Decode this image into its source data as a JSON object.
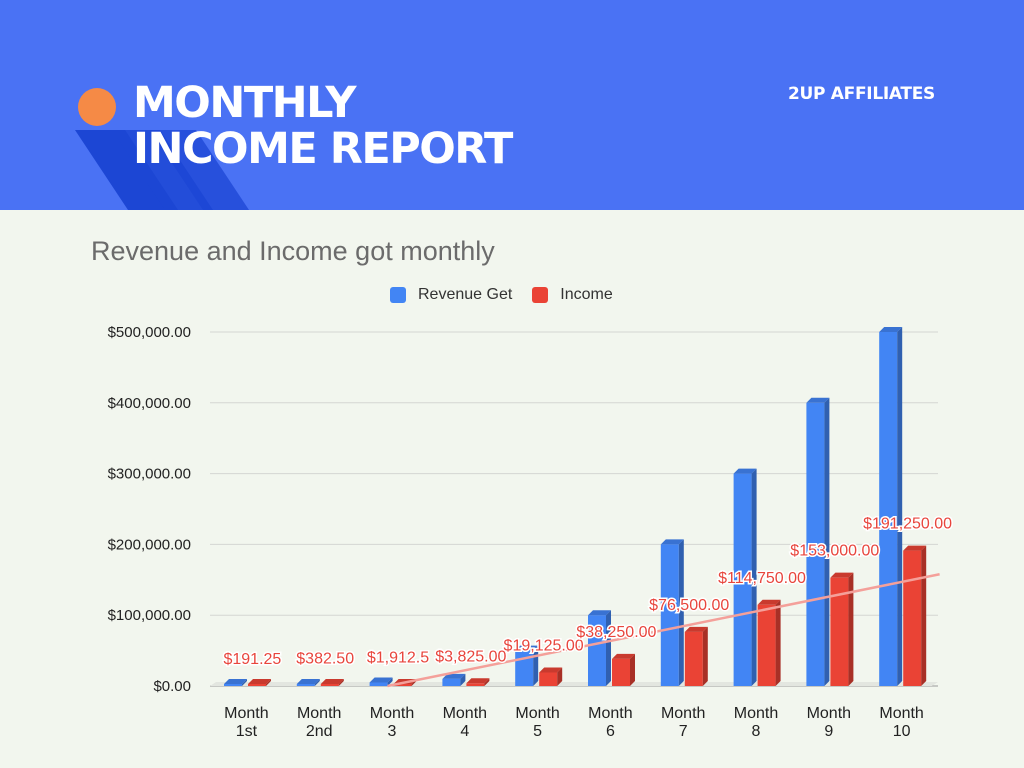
{
  "header": {
    "title_line1": "MONTHLY",
    "title_line2": "INCOME REPORT",
    "brand": "2UP AFFILIATES"
  },
  "colors": {
    "header_bg": "#4a72f4",
    "accent_dot": "#f58a46",
    "stripe": "#1c46d4",
    "revenue": "#4285f4",
    "income": "#ea4335",
    "trendline": "#f4a09a"
  },
  "chart_data": {
    "type": "bar",
    "title": "Revenue and Income got monthly",
    "categories": [
      [
        "Month",
        "1st"
      ],
      [
        "Month",
        "2nd"
      ],
      [
        "Month",
        "3"
      ],
      [
        "Month",
        "4"
      ],
      [
        "Month",
        "5"
      ],
      [
        "Month",
        "6"
      ],
      [
        "Month",
        "7"
      ],
      [
        "Month",
        "8"
      ],
      [
        "Month",
        "9"
      ],
      [
        "Month",
        "10"
      ]
    ],
    "series": [
      {
        "name": "Revenue Get",
        "values": [
          500,
          1000,
          5000,
          10000,
          50000,
          100000,
          200000,
          300000,
          400000,
          500000
        ]
      },
      {
        "name": "Income",
        "values": [
          191.25,
          382.5,
          1912.5,
          3825,
          19125,
          38250,
          76500,
          114750,
          153000,
          191250
        ],
        "data_labels": [
          "$191.25",
          "$382.50",
          "$1,912.5",
          "$3,825.00",
          "$19,125.00",
          "$38,250.00",
          "$76,500.00",
          "$114,750.00",
          "$153,000.00",
          "$191,250.00"
        ]
      }
    ],
    "yticks": [
      "$0.00",
      "$100,000.00",
      "$200,000.00",
      "$300,000.00",
      "$400,000.00",
      "$500,000.00"
    ],
    "ylim": [
      0,
      500000
    ],
    "trendline": {
      "series": "Income",
      "type": "linear"
    },
    "grid": true,
    "legend": "top"
  }
}
